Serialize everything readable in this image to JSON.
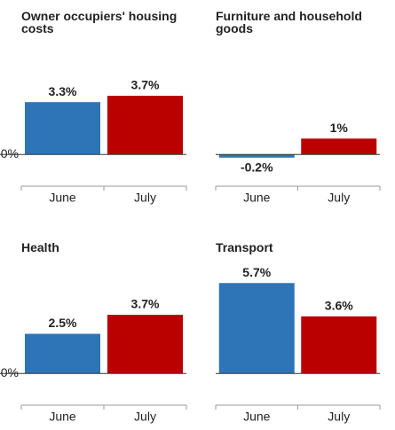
{
  "chart_data": [
    {
      "type": "bar",
      "title": "Owner occupiers' housing costs",
      "categories": [
        "June",
        "July"
      ],
      "values": [
        3.3,
        3.7
      ],
      "value_labels": [
        "3.3%",
        "3.7%"
      ],
      "colors": [
        "#2e75b8",
        "#bb0000"
      ],
      "ylim": [
        -2,
        7
      ],
      "yticks": [
        {
          "value": 0,
          "label": "0%"
        }
      ]
    },
    {
      "type": "bar",
      "title": "Furniture and household goods",
      "categories": [
        "June",
        "July"
      ],
      "values": [
        -0.2,
        1
      ],
      "value_labels": [
        "-0.2%",
        "1%"
      ],
      "colors": [
        "#2e75b8",
        "#bb0000"
      ],
      "ylim": [
        -2,
        7
      ],
      "yticks": []
    },
    {
      "type": "bar",
      "title": "Health",
      "categories": [
        "June",
        "July"
      ],
      "values": [
        2.5,
        3.7
      ],
      "value_labels": [
        "2.5%",
        "3.7%"
      ],
      "colors": [
        "#2e75b8",
        "#bb0000"
      ],
      "ylim": [
        -2,
        7
      ],
      "yticks": [
        {
          "value": 0,
          "label": "0%"
        }
      ]
    },
    {
      "type": "bar",
      "title": "Transport",
      "categories": [
        "June",
        "July"
      ],
      "values": [
        5.7,
        3.6
      ],
      "value_labels": [
        "5.7%",
        "3.6%"
      ],
      "colors": [
        "#2e75b8",
        "#bb0000"
      ],
      "ylim": [
        -2,
        7
      ],
      "yticks": []
    }
  ]
}
